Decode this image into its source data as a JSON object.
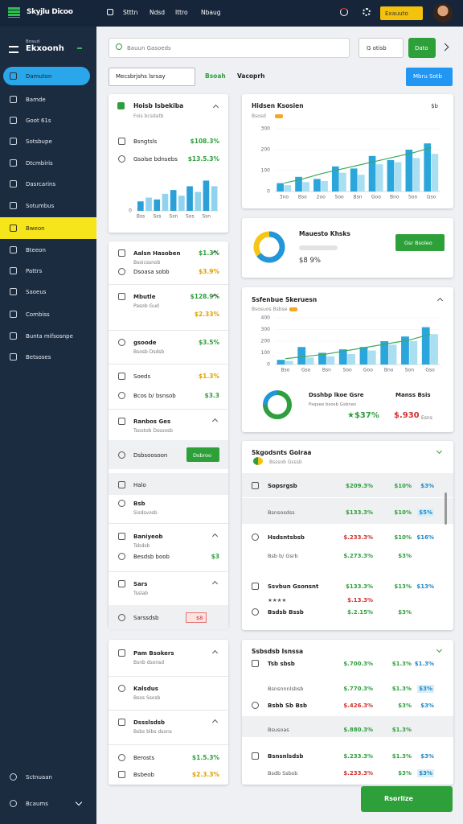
{
  "topbar": {
    "logo": "Skyjlu Dicoo",
    "nav": [
      "Stttn",
      "Ndsd",
      "Ittro",
      "Nbaug"
    ],
    "button": "Exauuto"
  },
  "sidebar": {
    "subtitle": "Bnsud",
    "title": "Ekxoonh",
    "items": [
      "Damuton",
      "Bamde",
      "Goot 61s",
      "Sotsbupe",
      "Dtcmbiris",
      "Dasrcarins",
      "Sotumbus",
      "Bweon",
      "Bteeon",
      "Pattrs",
      "Saoeus",
      "Combiss",
      "Bunta mifsosnpe",
      "Betsoses"
    ],
    "footer": [
      "Sctnuaan",
      "Bcaums"
    ]
  },
  "search": {
    "placeholder": "Bauun Gasoeds",
    "button": "G otisb",
    "action": "Dato"
  },
  "filters": {
    "dropdown": "Mecsbrjshs lsrsay",
    "tab_active": "Bsoah",
    "tab": "Vacoprh",
    "button": "Mbru Sotb"
  },
  "overview": {
    "title": "Hoisb Isbekiba",
    "subtitle": "Fois bcsdatb",
    "rows": [
      {
        "title": "Bsngtsls",
        "value": "$108.3%"
      },
      {
        "title": "Gsolse bdnsebs",
        "value": "$13.5.3%"
      }
    ],
    "chart": {
      "type": "bar",
      "categories": [
        "Bss",
        null,
        "Sss",
        null,
        "Ssn",
        null,
        "Sos",
        null,
        "Ssn",
        null
      ],
      "values": [
        10,
        14,
        12,
        18,
        22,
        16,
        26,
        20,
        32,
        26
      ],
      "color": "#2a9fd8",
      "ylim": [
        0,
        40
      ],
      "yticks": [
        0
      ]
    }
  },
  "list": {
    "rows": [
      {
        "title": "Aalsn Hasoben",
        "sub": "Bsoicssnob",
        "value": "$1.3%"
      },
      {
        "title": "Dsoasa sobb",
        "value": "$3.9%"
      },
      {
        "title": "Mbutle",
        "sub": "Pasob Gud",
        "value": "$128.9%",
        "value2": "$2.33%"
      },
      {
        "title": "gsoode",
        "sub": "Bsosb Dsdsb",
        "value": "$3.5%"
      },
      {
        "title": "Soeds",
        "value": "$1.3%"
      },
      {
        "title": "Bcos b/ bsnsob",
        "value": "$3.3"
      },
      {
        "title": "Ranbos Ges",
        "sub": "Tsostob Dsssosb"
      },
      {
        "title": "Dsbsoosoon",
        "button": "Dsbroo"
      },
      {
        "title": "Halo"
      },
      {
        "title": "Bsb",
        "sub": "Sisdsvosb"
      },
      {
        "title": "Baniyeob",
        "sub": "Tsbdsb"
      },
      {
        "title": "Besdsb boob",
        "value": "$3"
      },
      {
        "title": "Sars",
        "sub": "Tsslab"
      },
      {
        "title": "Sarssdsb",
        "badge": "$8"
      }
    ]
  },
  "list2": {
    "rows": [
      {
        "title": "Pam Bsokers",
        "sub": "Bsnb dsonsd"
      },
      {
        "title": "Kalsdus",
        "sub": "Bsos Ssosb"
      },
      {
        "title": "Dssslsdsb",
        "sub": "Bsbs blbs dsons"
      },
      {
        "title": "Berosts",
        "value": "$1.5.3%"
      },
      {
        "title": "Bsbeob",
        "value": "$2.3.3%"
      }
    ]
  },
  "main_chart": {
    "type": "bar",
    "title": "Hidsen Ksosien",
    "badge": "$b",
    "legend": "Bsosd",
    "categories": [
      "3no",
      "Bso",
      "2oo",
      "Soo",
      "Bsn",
      "Goo",
      "Bno",
      "Son",
      "Gso"
    ],
    "series": [
      {
        "name": "Bsosd",
        "type": "bar",
        "color": "#2aa6dc",
        "values": [
          40,
          70,
          60,
          120,
          110,
          170,
          150,
          200,
          230
        ]
      },
      {
        "type": "bar",
        "color": "#a9dff1",
        "values": [
          30,
          45,
          50,
          90,
          80,
          130,
          140,
          160,
          180
        ]
      },
      {
        "type": "line",
        "color": "#3daa5a",
        "values": [
          40,
          60,
          85,
          105,
          125,
          145,
          165,
          185,
          210
        ]
      }
    ],
    "ylim": [
      0,
      300
    ],
    "yticks": [
      0,
      100,
      200,
      300
    ]
  },
  "summary": {
    "title": "Mauesto Khsks",
    "value_label": "$8 9%",
    "donut": {
      "type": "pie",
      "values": [
        65,
        35
      ],
      "colors": [
        "#2196d8",
        "#f5c518"
      ]
    },
    "button": "Gsr Bsoleo"
  },
  "second_chart": {
    "type": "bar",
    "title": "Ssfenbue Skeruesn",
    "legend": "Bsosuos Bsbse",
    "categories": [
      "Bso",
      "Gso",
      "Bsn",
      "Soo",
      "Goo",
      "Bno",
      "Son",
      "Gso"
    ],
    "series": [
      {
        "name": "Bsosuos Bsbse",
        "type": "bar",
        "color": "#2aa6dc",
        "values": [
          40,
          150,
          100,
          130,
          150,
          200,
          240,
          320
        ]
      },
      {
        "type": "bar",
        "color": "#a9dff1",
        "values": [
          30,
          60,
          70,
          90,
          120,
          170,
          200,
          260
        ]
      },
      {
        "type": "line",
        "color": "#3daa5a",
        "values": [
          50,
          70,
          90,
          120,
          150,
          180,
          210,
          260
        ]
      }
    ],
    "ylim": [
      0,
      400
    ],
    "yticks": [
      0,
      100,
      200,
      300,
      400
    ],
    "donut": {
      "type": "pie",
      "values": [
        75,
        25
      ],
      "colors": [
        "#2e9e3e",
        "#2196d8"
      ]
    },
    "stat_title": "Dsshbp lkoe Gsre",
    "stat_sub": "Psqsee bsosb Gsbnes",
    "stat_value": "★$37%",
    "stat2_title": "Manss Bsis",
    "stat2_value": "$.930",
    "stat2_unit": "Esns"
  },
  "table1": {
    "title": "Skgodsnts Goiraa",
    "subtitle": "Bsssob Gsssb",
    "rows": [
      [
        "Sopsrgsb",
        "$209.3%",
        "$10%",
        "$3%"
      ],
      [
        "Bsnsosdss",
        "$133.3%",
        "$10%",
        "$5%"
      ],
      [
        "Hsdsntsbsb",
        "$.233.3%",
        "$10%",
        "$16%"
      ],
      [
        "Bsb b/ Gsrb",
        "$.273.3%",
        "$3%"
      ],
      [
        "Ssvbun Gsonsnt",
        "$133.3%",
        "$13%",
        "$13%"
      ],
      [
        "★★★★",
        "$.13.3%"
      ],
      [
        "Bsdsb Bssb",
        "$.2.15%",
        "$3%"
      ]
    ]
  },
  "table2": {
    "title": "Ssbsdsb Isnssa",
    "rows": [
      [
        "Tsb sbsb",
        "$.700.3%",
        "$1.3%",
        "$1.3%"
      ],
      [
        "Bsnsnnnlsbsb",
        "$.770.3%",
        "$1.3%",
        "$3%"
      ],
      [
        "Bsbb Sb Bsb",
        "$.426.3%",
        "$3%",
        "$3%"
      ],
      [
        "Bsusoas",
        "$.880.3%",
        "$1.3%"
      ],
      [
        "Bsnsnlsdsb",
        "$.233.3%",
        "$1.3%",
        "$3%"
      ],
      [
        "Bsdb Ssbsb",
        "$.233.3%",
        "$3%",
        "$3%"
      ]
    ]
  },
  "footer_button": "Rsorlize"
}
